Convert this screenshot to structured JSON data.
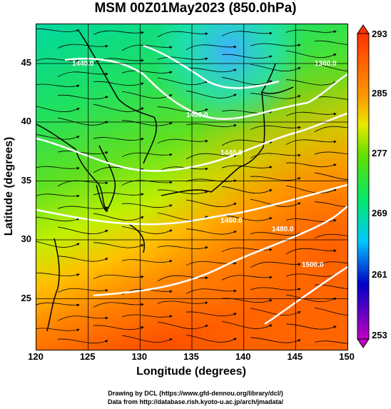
{
  "title": "MSM 00Z01May2023 (850.0hPa)",
  "axes": {
    "xlabel": "Longitude (degrees)",
    "ylabel": "Latitude  (degrees)",
    "xticks": [
      "120",
      "125",
      "130",
      "135",
      "140",
      "145",
      "150"
    ],
    "yticks": [
      "45",
      "40",
      "35",
      "30",
      "25"
    ]
  },
  "contours": {
    "labels": [
      "1440.0",
      "1400.0",
      "1440.0",
      "1460.0",
      "1480.0",
      "1500.0",
      "1360.0"
    ]
  },
  "colorbar": {
    "ticks": [
      "293",
      "285",
      "277",
      "269",
      "261",
      "253"
    ],
    "colors": [
      "#c000c0",
      "#0000c8",
      "#00c8ff",
      "#00e870",
      "#c8f000",
      "#ff9600",
      "#ff3200"
    ]
  },
  "credits": {
    "line1": "Drawing by DCL (https://www.gfd-dennou.org/library/dcl/)",
    "line2": "Data from http://database.rish.kyoto-u.ac.jp/arch/jmadata/"
  }
}
